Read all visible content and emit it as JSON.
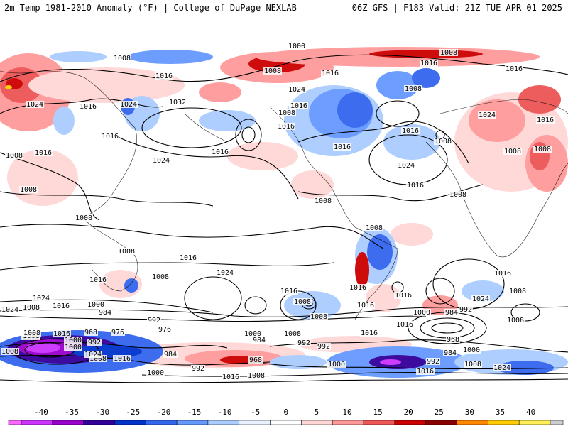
{
  "header": {
    "left": "2m Temp 1981-2010 Anomaly (°F) | College of DuPage NEXLAB",
    "right": "06Z GFS | F183 Valid: 21Z TUE APR 01 2025"
  },
  "map": {
    "projection": "global cylindrical, Pacific-centered",
    "field": "2m temperature anomaly (°F) with MSLP contours (mb)",
    "pressure_labels": [
      {
        "text": "1000",
        "region": "arctic-north-atlantic"
      },
      {
        "text": "1008",
        "region": "north-pole"
      },
      {
        "text": "1008",
        "region": "siberia-north"
      },
      {
        "text": "1008",
        "region": "arctic-canada"
      },
      {
        "text": "1016",
        "region": "central-siberia"
      },
      {
        "text": "1016",
        "region": "bering-sea"
      },
      {
        "text": "1016",
        "region": "greenland-sea"
      },
      {
        "text": "1016",
        "region": "scandinavia"
      },
      {
        "text": "1024",
        "region": "hudson-bay"
      },
      {
        "text": "1008",
        "region": "labrador-sea"
      },
      {
        "text": "1024",
        "region": "mongolia"
      },
      {
        "text": "1016",
        "region": "north-china"
      },
      {
        "text": "1024",
        "region": "east-asia"
      },
      {
        "text": "1016",
        "region": "manchuria"
      },
      {
        "text": "1032",
        "region": "north-pacific-high"
      },
      {
        "text": "1008",
        "region": "gulf-of-alaska"
      },
      {
        "text": "1016",
        "region": "pacific-northwest"
      },
      {
        "text": "1016",
        "region": "us-west"
      },
      {
        "text": "1016",
        "region": "us-east"
      },
      {
        "text": "1016",
        "region": "north-atlantic-west"
      },
      {
        "text": "1008",
        "region": "north-atlantic-low"
      },
      {
        "text": "1016",
        "region": "europe-north"
      },
      {
        "text": "1024",
        "region": "eastern-europe"
      },
      {
        "text": "1016",
        "region": "russia-west"
      },
      {
        "text": "1008",
        "region": "iran"
      },
      {
        "text": "1008",
        "region": "mediterranean"
      },
      {
        "text": "1008",
        "region": "central-asia"
      },
      {
        "text": "1016",
        "region": "tibet"
      },
      {
        "text": "1008",
        "region": "india"
      },
      {
        "text": "1016",
        "region": "subtropical-pacific"
      },
      {
        "text": "1024",
        "region": "central-north-pacific"
      },
      {
        "text": "1024",
        "region": "azores"
      },
      {
        "text": "1016",
        "region": "sargasso"
      },
      {
        "text": "1008",
        "region": "caribbean"
      },
      {
        "text": "1008",
        "region": "sahara"
      },
      {
        "text": "1008",
        "region": "indonesia"
      },
      {
        "text": "1008",
        "region": "north-australia"
      },
      {
        "text": "1008",
        "region": "amazon"
      },
      {
        "text": "1016",
        "region": "south-pacific-east"
      },
      {
        "text": "1024",
        "region": "south-pacific-high"
      },
      {
        "text": "1008",
        "region": "new-zealand-west"
      },
      {
        "text": "1016",
        "region": "south-australia"
      },
      {
        "text": "1016",
        "region": "south-indian-ocean"
      },
      {
        "text": "1024",
        "region": "south-indian-high"
      },
      {
        "text": "1016",
        "region": "south-atlantic"
      },
      {
        "text": "1016",
        "region": "patagonia"
      },
      {
        "text": "1016",
        "region": "south-atlantic-high"
      },
      {
        "text": "1016",
        "region": "south-africa"
      },
      {
        "text": "1008",
        "region": "south-africa-east"
      },
      {
        "text": "1008",
        "region": "southern-ocean-pacific"
      },
      {
        "text": "1024",
        "region": "southern-indian-ocean"
      },
      {
        "text": "1008",
        "region": "tasman"
      },
      {
        "text": "1016",
        "region": "south-of-australia"
      },
      {
        "text": "1000",
        "region": "south-pacific-storm"
      },
      {
        "text": "984",
        "region": "south-pacific-storm-2"
      },
      {
        "text": "992",
        "region": "south-pacific-west"
      },
      {
        "text": "976",
        "region": "south-pacific-core"
      },
      {
        "text": "1000",
        "region": "drake-passage"
      },
      {
        "text": "1008",
        "region": "south-pacific-far"
      },
      {
        "text": "1000",
        "region": "south-atlantic-storm"
      },
      {
        "text": "984",
        "region": "weddell"
      },
      {
        "text": "992",
        "region": "scotia"
      },
      {
        "text": "968",
        "region": "south-indian-low"
      },
      {
        "text": "984",
        "region": "south-indian-low-2"
      },
      {
        "text": "1000",
        "region": "south-indian-rim"
      },
      {
        "text": "968",
        "region": "ross-sea"
      },
      {
        "text": "976",
        "region": "ross-sea-2"
      },
      {
        "text": "1000",
        "region": "antarctic-west"
      },
      {
        "text": "992",
        "region": "antarctic-west-2"
      },
      {
        "text": "1024",
        "region": "west-antarctica"
      },
      {
        "text": "1008",
        "region": "east-antarctic-coast"
      },
      {
        "text": "1016",
        "region": "amundsen"
      },
      {
        "text": "984",
        "region": "bellingshausen"
      },
      {
        "text": "992",
        "region": "antarctic-peninsula"
      },
      {
        "text": "968",
        "region": "southern-pacific-sector"
      },
      {
        "text": "984",
        "region": "south-pacific-deep"
      },
      {
        "text": "1000",
        "region": "far-south-pacific"
      },
      {
        "text": "992",
        "region": "ross-ice"
      },
      {
        "text": "1016",
        "region": "east-antarctica"
      },
      {
        "text": "1008",
        "region": "dronning-maud"
      },
      {
        "text": "1000",
        "region": "antarctic-coast-2"
      },
      {
        "text": "992",
        "region": "south-indian-storm"
      },
      {
        "text": "1008",
        "region": "antarctic-coast-3"
      },
      {
        "text": "1024",
        "region": "antarctic-interior"
      },
      {
        "text": "1016",
        "region": "antarctic-coast-4"
      },
      {
        "text": "1008",
        "region": "antarctic-coast-5"
      },
      {
        "text": "1000",
        "region": "antarctic-coast-6"
      },
      {
        "text": "992",
        "region": "antarctic-coast-7"
      },
      {
        "text": "1024",
        "region": "southern-ocean-east"
      },
      {
        "text": "1008",
        "region": "southern-ocean-east-2"
      },
      {
        "text": "1016",
        "region": "southern-ocean-east-3"
      },
      {
        "text": "1008",
        "region": "wilkes-land"
      },
      {
        "text": "1000",
        "region": "wilkes-land-2"
      },
      {
        "text": "1016",
        "region": "wilkes-land-3"
      },
      {
        "text": "1008",
        "region": "wilkes-land-4"
      },
      {
        "text": "1008",
        "region": "south-pacific-band"
      },
      {
        "text": "1016",
        "region": "far-south-indian"
      }
    ]
  },
  "colorbar": {
    "ticks": [
      "-40",
      "-35",
      "-30",
      "-25",
      "-20",
      "-15",
      "-10",
      "-5",
      "0",
      "5",
      "10",
      "15",
      "20",
      "25",
      "30",
      "35",
      "40"
    ],
    "colors": [
      "#ff66ff",
      "#cc33ff",
      "#9900cc",
      "#330099",
      "#0033cc",
      "#3366ee",
      "#6699ff",
      "#aaccff",
      "#e8f0ff",
      "#ffffff",
      "#ffd6d6",
      "#ff9999",
      "#ee5555",
      "#cc0000",
      "#880000",
      "#ff8800",
      "#ffcc00",
      "#ffee55",
      "#cccccc"
    ]
  }
}
